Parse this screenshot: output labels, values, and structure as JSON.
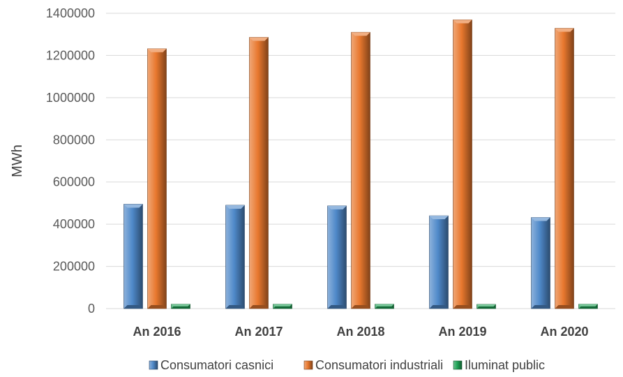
{
  "chart_data": {
    "type": "bar",
    "categories": [
      "An 2016",
      "An 2017",
      "An 2018",
      "An 2019",
      "An 2020"
    ],
    "series": [
      {
        "name": "Consumatori casnici",
        "values": [
          495000,
          490000,
          487000,
          440000,
          432000
        ],
        "color": "#4F89C9"
      },
      {
        "name": "Consumatori industriali",
        "values": [
          1232000,
          1286000,
          1310000,
          1369000,
          1329000
        ],
        "color": "#E8782E"
      },
      {
        "name": "Iluminat public",
        "values": [
          21000,
          21000,
          21000,
          20000,
          21000
        ],
        "color": "#1FA356"
      }
    ],
    "ylabel": "MWh",
    "ylim": [
      0,
      1400000
    ],
    "yticks": [
      "0",
      "200000",
      "400000",
      "600000",
      "800000",
      "1000000",
      "1200000",
      "1400000"
    ],
    "grid": true,
    "legend_position": "bottom"
  }
}
